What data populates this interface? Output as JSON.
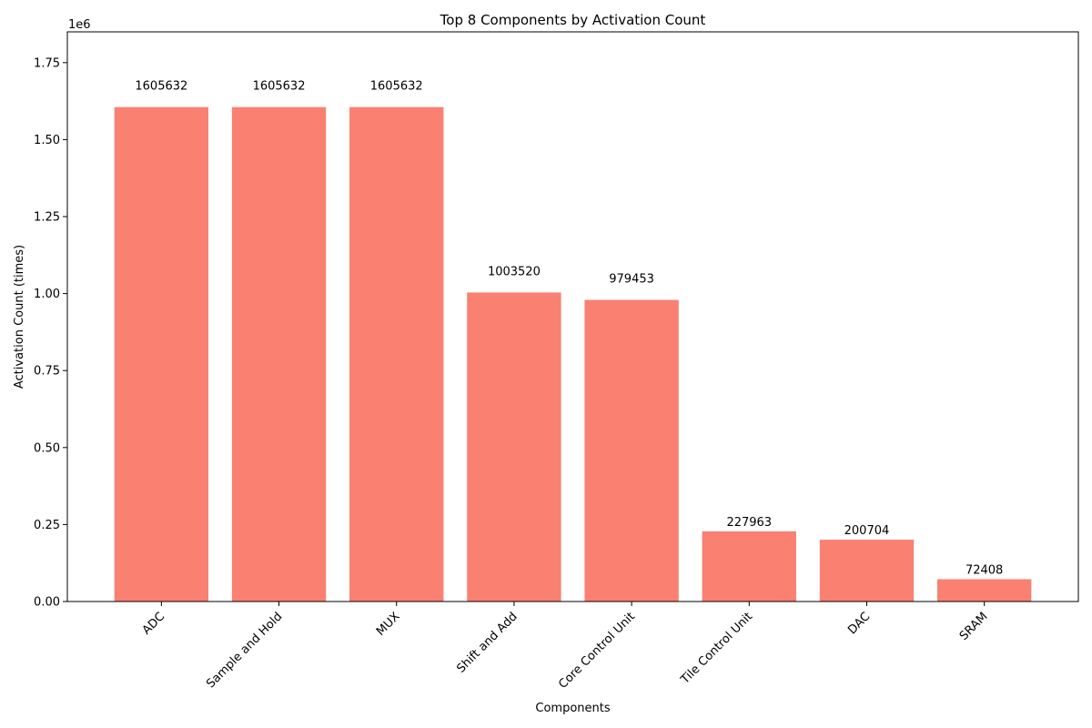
{
  "chart_data": {
    "type": "bar",
    "title": "Top 8 Components by Activation Count",
    "xlabel": "Components",
    "ylabel": "Activation Count (times)",
    "offset_label": "1e6",
    "categories": [
      "ADC",
      "Sample and Hold",
      "MUX",
      "Shift and Add",
      "Core Control Unit",
      "Tile Control Unit",
      "DAC",
      "SRAM"
    ],
    "values": [
      1605632,
      1605632,
      1605632,
      1003520,
      979453,
      227963,
      200704,
      72408
    ],
    "value_labels": [
      "1605632",
      "1605632",
      "1605632",
      "1003520",
      "979453",
      "227963",
      "200704",
      "72408"
    ],
    "ylim": [
      0,
      1850000
    ],
    "yticks": [
      0,
      250000,
      500000,
      750000,
      1000000,
      1250000,
      1500000,
      1750000
    ],
    "ytick_labels": [
      "0.00",
      "0.25",
      "0.50",
      "0.75",
      "1.00",
      "1.25",
      "1.50",
      "1.75"
    ],
    "bar_color": "#fa8072",
    "grid": false,
    "legend": "none"
  }
}
